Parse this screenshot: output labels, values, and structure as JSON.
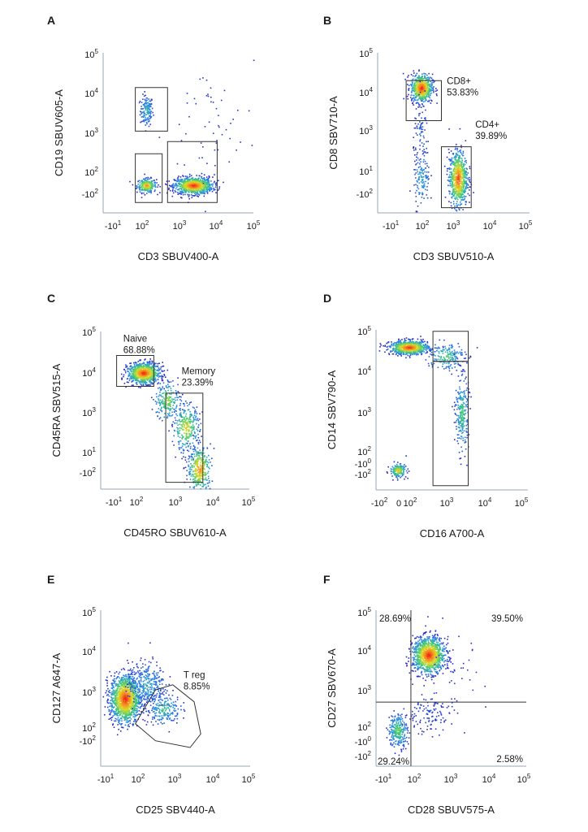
{
  "chart_data": [
    {
      "panel": "A",
      "type": "scatter",
      "xlabel": "CD3 SBUV400-A",
      "ylabel": "CD19 SBUV605-A",
      "x_ticks": [
        "-10¹",
        "10²",
        "10³",
        "10⁴",
        "10⁵"
      ],
      "y_ticks": [
        "10⁵",
        "10⁴",
        "10³",
        "10²",
        "-10²"
      ],
      "populations": [
        {
          "x": 1.0,
          "y": 3.35,
          "spread_x": 0.12,
          "spread_y": 0.22,
          "count": 140,
          "intensity": 0.4
        },
        {
          "x": 1.0,
          "y": 1.2,
          "spread_x": 0.18,
          "spread_y": 0.1,
          "count": 260,
          "intensity": 0.85
        },
        {
          "x": 2.75,
          "y": 1.2,
          "spread_x": 0.35,
          "spread_y": 0.12,
          "count": 900,
          "intensity": 1.0
        },
        {
          "x": 3.5,
          "y": 2.8,
          "spread_x": 0.9,
          "spread_y": 1.1,
          "count": 60,
          "intensity": 0.05
        }
      ],
      "gates": [
        {
          "points": [
            [
              0.6,
              2.75
            ],
            [
              1.8,
              2.75
            ],
            [
              1.8,
              4.0
            ],
            [
              0.6,
              4.0
            ]
          ],
          "label": "",
          "lpos": [
            0,
            0
          ]
        },
        {
          "points": [
            [
              0.6,
              0.7
            ],
            [
              1.6,
              0.7
            ],
            [
              1.6,
              2.1
            ],
            [
              0.6,
              2.1
            ]
          ],
          "label": "",
          "lpos": [
            0,
            0
          ]
        },
        {
          "points": [
            [
              1.8,
              0.7
            ],
            [
              3.65,
              0.7
            ],
            [
              3.65,
              2.45
            ],
            [
              1.8,
              2.45
            ]
          ],
          "label": "",
          "lpos": [
            0,
            0
          ]
        }
      ]
    },
    {
      "panel": "B",
      "type": "scatter",
      "xlabel": "CD3 SBUV510-A",
      "ylabel": "CD8 SBV710-A",
      "x_ticks": [
        "-10¹",
        "10²",
        "10³",
        "10⁴",
        "10⁵"
      ],
      "y_ticks": [
        "10⁵",
        "10⁴",
        "10³",
        "10¹",
        "-10²"
      ],
      "populations": [
        {
          "x": 1.0,
          "y": 4.0,
          "spread_x": 0.2,
          "spread_y": 0.2,
          "count": 600,
          "intensity": 1.0
        },
        {
          "x": 2.35,
          "y": 1.4,
          "spread_x": 0.17,
          "spread_y": 0.4,
          "count": 700,
          "intensity": 0.95
        },
        {
          "x": 1.0,
          "y": 1.4,
          "spread_x": 0.15,
          "spread_y": 0.4,
          "count": 130,
          "intensity": 0.35
        },
        {
          "x": 1.0,
          "y": 2.7,
          "spread_x": 0.15,
          "spread_y": 0.45,
          "count": 80,
          "intensity": 0.15
        }
      ],
      "gates": [
        {
          "points": [
            [
              0.45,
              3.05
            ],
            [
              1.75,
              3.05
            ],
            [
              1.75,
              4.2
            ],
            [
              0.45,
              4.2
            ]
          ],
          "label": "CD8+\n53.83%",
          "lpos": [
            1.95,
            4.1
          ]
        },
        {
          "points": [
            [
              1.75,
              0.55
            ],
            [
              2.85,
              0.55
            ],
            [
              2.85,
              2.3
            ],
            [
              1.75,
              2.3
            ]
          ],
          "label": "CD4+\n39.89%",
          "lpos": [
            3.0,
            2.85
          ]
        }
      ]
    },
    {
      "panel": "C",
      "type": "scatter",
      "xlabel": "CD45RO SBUV610-A",
      "ylabel": "CD45RA SBV515-A",
      "x_ticks": [
        "-10¹",
        "10²",
        "10³",
        "10⁴",
        "10⁵"
      ],
      "y_ticks": [
        "10⁵",
        "10⁴",
        "10³",
        "10¹",
        "-10²"
      ],
      "populations": [
        {
          "x": 1.0,
          "y": 3.8,
          "spread_x": 0.3,
          "spread_y": 0.15,
          "count": 900,
          "intensity": 1.0
        },
        {
          "x": 1.9,
          "y": 3.0,
          "spread_x": 0.25,
          "spread_y": 0.3,
          "count": 200,
          "intensity": 0.6
        },
        {
          "x": 2.6,
          "y": 2.2,
          "spread_x": 0.25,
          "spread_y": 0.35,
          "count": 300,
          "intensity": 0.7
        },
        {
          "x": 3.1,
          "y": 1.0,
          "spread_x": 0.22,
          "spread_y": 0.35,
          "count": 350,
          "intensity": 0.85
        }
      ],
      "gates": [
        {
          "points": [
            [
              0.0,
              3.4
            ],
            [
              1.4,
              3.4
            ],
            [
              1.4,
              4.3
            ],
            [
              0.0,
              4.3
            ]
          ],
          "label": "Naive\n68.88%",
          "lpos": [
            0.25,
            4.7
          ]
        },
        {
          "points": [
            [
              1.85,
              0.6
            ],
            [
              3.25,
              0.6
            ],
            [
              3.25,
              3.2
            ],
            [
              1.85,
              3.2
            ]
          ],
          "label": "Memory\n23.39%",
          "lpos": [
            2.45,
            3.75
          ]
        }
      ]
    },
    {
      "panel": "D",
      "type": "scatter",
      "xlabel": "CD16 A700-A",
      "ylabel": "CD14 SBV790-A",
      "x_ticks": [
        "-10²",
        "0",
        "10²",
        "10³",
        "10⁴",
        "10⁵"
      ],
      "y_ticks": [
        "10⁵",
        "10⁴",
        "10³",
        "10²",
        "-10⁰",
        "-10²"
      ],
      "populations": [
        {
          "x": 0.6,
          "y": 4.4,
          "spread_x": 0.35,
          "spread_y": 0.12,
          "count": 800,
          "intensity": 1.0
        },
        {
          "x": 1.95,
          "y": 4.1,
          "spread_x": 0.35,
          "spread_y": 0.25,
          "count": 180,
          "intensity": 0.5
        },
        {
          "x": 2.55,
          "y": 2.1,
          "spread_x": 0.12,
          "spread_y": 0.65,
          "count": 260,
          "intensity": 0.5
        },
        {
          "x": 0.2,
          "y": 0.1,
          "spread_x": 0.15,
          "spread_y": 0.12,
          "count": 170,
          "intensity": 0.75
        }
      ],
      "gates": [
        {
          "points": [
            [
              1.5,
              3.9
            ],
            [
              2.8,
              3.9
            ],
            [
              2.8,
              4.95
            ],
            [
              1.5,
              4.95
            ]
          ],
          "label": "",
          "lpos": [
            0,
            0
          ]
        },
        {
          "points": [
            [
              1.5,
              -0.45
            ],
            [
              2.8,
              -0.45
            ],
            [
              2.8,
              3.9
            ],
            [
              1.5,
              3.9
            ]
          ],
          "label": "",
          "lpos": [
            0,
            0
          ]
        }
      ]
    },
    {
      "panel": "E",
      "type": "scatter",
      "xlabel": "CD25 SBV440-A",
      "ylabel": "CD127 A647-A",
      "x_ticks": [
        "-10¹",
        "10²",
        "10³",
        "10⁴",
        "10⁵"
      ],
      "y_ticks": [
        "10⁵",
        "10⁴",
        "10³",
        "10²",
        "-10²"
      ],
      "populations": [
        {
          "x": 0.3,
          "y": 2.4,
          "spread_x": 0.28,
          "spread_y": 0.35,
          "count": 1300,
          "intensity": 1.0
        },
        {
          "x": 1.1,
          "y": 2.8,
          "spread_x": 0.35,
          "spread_y": 0.35,
          "count": 350,
          "intensity": 0.35
        },
        {
          "x": 1.75,
          "y": 2.1,
          "spread_x": 0.3,
          "spread_y": 0.22,
          "count": 180,
          "intensity": 0.45
        }
      ],
      "gates": [
        {
          "points": [
            [
              0.7,
              1.65
            ],
            [
              1.45,
              2.65
            ],
            [
              2.1,
              2.8
            ],
            [
              2.9,
              2.3
            ],
            [
              3.15,
              1.35
            ],
            [
              2.75,
              0.95
            ],
            [
              1.45,
              1.15
            ],
            [
              0.7,
              1.65
            ]
          ],
          "label": "T reg\n8.85%",
          "lpos": [
            2.5,
            3.0
          ]
        }
      ]
    },
    {
      "panel": "F",
      "type": "scatter",
      "xlabel": "CD28 SBUV575-A",
      "ylabel": "CD27 SBV670-A",
      "x_ticks": [
        "-10¹",
        "10²",
        "10³",
        "10⁴",
        "10⁵"
      ],
      "y_ticks": [
        "10⁵",
        "10⁴",
        "10³",
        "10²",
        "-10⁰",
        "-10²"
      ],
      "populations": [
        {
          "x": 1.35,
          "y": 3.4,
          "spread_x": 0.3,
          "spread_y": 0.32,
          "count": 1100,
          "intensity": 1.0
        },
        {
          "x": 0.2,
          "y": 0.7,
          "spread_x": 0.18,
          "spread_y": 0.3,
          "count": 260,
          "intensity": 0.55
        },
        {
          "x": 1.3,
          "y": 1.3,
          "spread_x": 0.45,
          "spread_y": 0.35,
          "count": 120,
          "intensity": 0.1
        },
        {
          "x": 2.2,
          "y": 2.5,
          "spread_x": 0.6,
          "spread_y": 0.8,
          "count": 40,
          "intensity": 0.05
        }
      ],
      "gates": [],
      "quadrant": {
        "x": 0.7,
        "y": 1.7,
        "labels": [
          "28.69%",
          "39.50%",
          "29.24%",
          "2.58%"
        ]
      }
    }
  ]
}
